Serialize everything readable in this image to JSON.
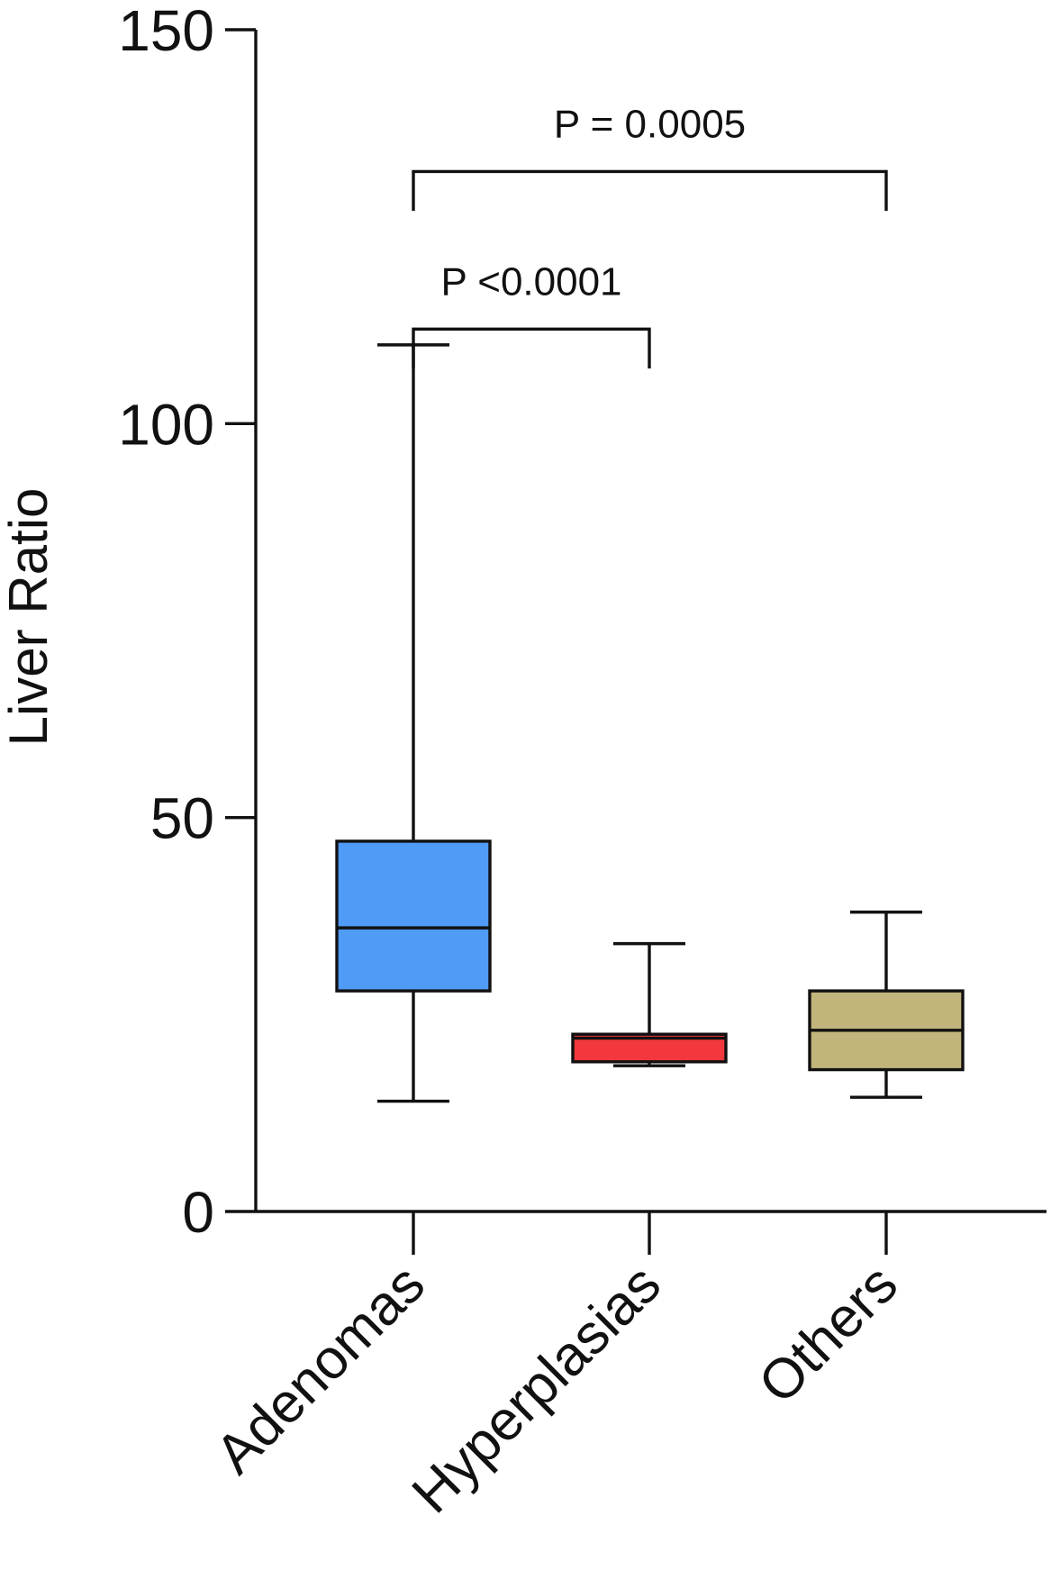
{
  "chart_data": {
    "type": "box",
    "title": "",
    "xlabel": "",
    "ylabel": "Liver Ratio",
    "ylim": [
      0,
      150
    ],
    "yticks": [
      0,
      50,
      100,
      150
    ],
    "grid": false,
    "legend": "none",
    "categories": [
      "Adenomas",
      "Hyperplasias",
      "Others"
    ],
    "series": [
      {
        "category": "Adenomas",
        "whisker_low": 14,
        "q1": 28,
        "median": 36,
        "q3": 47,
        "whisker_high": 110,
        "color": "#4f9bf6"
      },
      {
        "category": "Hyperplasias",
        "whisker_low": 18.5,
        "q1": 19,
        "median": 22,
        "q3": 22.5,
        "whisker_high": 34,
        "color": "#f2383c"
      },
      {
        "category": "Others",
        "whisker_low": 14.5,
        "q1": 18,
        "median": 23,
        "q3": 28,
        "whisker_high": 38,
        "color": "#c2b57c"
      }
    ],
    "annotations": [
      {
        "label": "P = 0.0005",
        "from": "Adenomas",
        "to": "Others",
        "y_top": 132,
        "y_drop": 127
      },
      {
        "label": "P <0.0001",
        "from": "Adenomas",
        "to": "Hyperplasias",
        "y_top": 112,
        "y_drop": 107
      }
    ]
  }
}
